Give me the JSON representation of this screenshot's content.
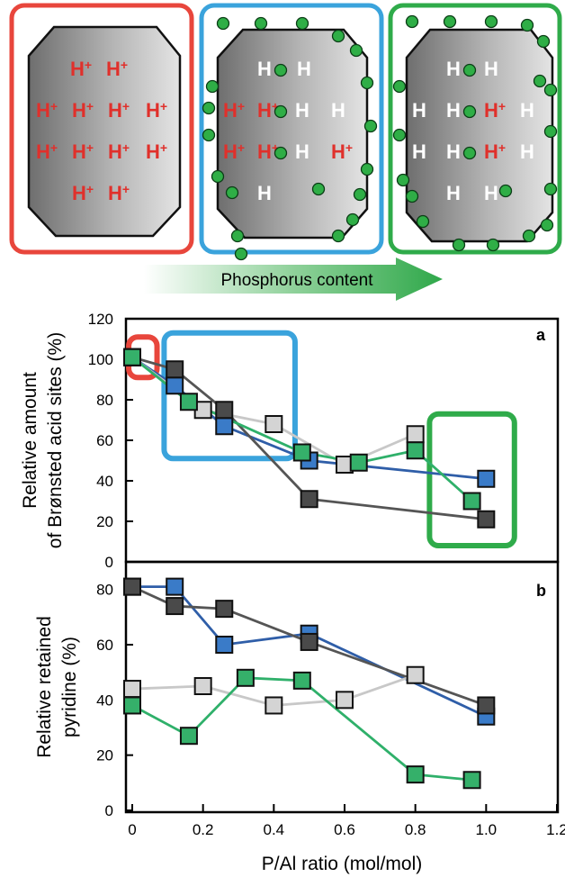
{
  "diagram": {
    "ion_label": "H",
    "charge_label": "+",
    "arrow_label": "Phosphorus content",
    "panels": [
      {
        "name": "low",
        "frame_color": "#e8463c",
        "ions": [
          "H+",
          "H+",
          "H+",
          "H+",
          "H+",
          "H+",
          "H+",
          "H+",
          "H+",
          "H+",
          "H+",
          "H+"
        ]
      },
      {
        "name": "medium",
        "frame_color": "#3aa3dc",
        "ions": [
          "H",
          "H",
          "H+",
          "H+",
          "H",
          "H",
          "H+",
          "H+",
          "H",
          "H+",
          "H"
        ]
      },
      {
        "name": "high",
        "frame_color": "#2fab4a",
        "ions": [
          "H",
          "H",
          "H",
          "H",
          "H+",
          "H",
          "H",
          "H",
          "H+",
          "H",
          "H",
          "H"
        ]
      }
    ],
    "colors": {
      "proton": "#e0302b",
      "neutral": "#ffffff",
      "phosphorus_dot": "#2fae46",
      "arrow_end": "#2fa84a"
    }
  },
  "chart_data": [
    {
      "type": "line",
      "panel_label": "a",
      "ylabel_lines": [
        "Relative amount",
        "of Brønsted acid sites (%)"
      ],
      "ylim": [
        0,
        120
      ],
      "yticks": [
        "0",
        "20",
        "40",
        "60",
        "80",
        "100",
        "120"
      ],
      "xlim": [
        0,
        1.2
      ],
      "series": [
        {
          "color": "#2f5ea8",
          "fill": "#3a7bc8",
          "x": [
            0,
            0.12,
            0.26,
            0.5,
            1.0
          ],
          "y": [
            101,
            87,
            67,
            50,
            41
          ]
        },
        {
          "color": "#555555",
          "fill": "#4a4a4a",
          "x": [
            0,
            0.12,
            0.26,
            0.5,
            1.0
          ],
          "y": [
            101,
            95,
            75,
            31,
            21
          ]
        },
        {
          "color": "#c8c8c8",
          "fill": "#d4d4d4",
          "x": [
            0,
            0.2,
            0.4,
            0.6,
            0.8
          ],
          "y": [
            101,
            75,
            68,
            48,
            63
          ]
        },
        {
          "color": "#2fb06a",
          "fill": "#35b06a",
          "x": [
            0,
            0.16,
            0.48,
            0.64,
            0.8,
            0.96
          ],
          "y": [
            101,
            79,
            54,
            49,
            55,
            30
          ]
        }
      ],
      "highlight_boxes": [
        {
          "color": "#e8463c",
          "x": [
            -0.01,
            0.07
          ],
          "y": [
            91,
            111
          ]
        },
        {
          "color": "#3aa3dc",
          "x": [
            0.09,
            0.46
          ],
          "y": [
            51,
            113
          ]
        },
        {
          "color": "#2fab4a",
          "x": [
            0.84,
            1.08
          ],
          "y": [
            8,
            73
          ]
        }
      ]
    },
    {
      "type": "line",
      "panel_label": "b",
      "ylabel_lines": [
        "Relative retained",
        "pyridine (%)"
      ],
      "ylim": [
        0,
        90
      ],
      "yticks": [
        "0",
        "20",
        "40",
        "60",
        "80"
      ],
      "xlabel": "P/Al ratio (mol/mol)",
      "xlim": [
        0,
        1.2
      ],
      "xticks": [
        "0",
        "0.2",
        "0.4",
        "0.6",
        "0.8",
        "1.0",
        "1.2"
      ],
      "series": [
        {
          "color": "#2f5ea8",
          "fill": "#3a7bc8",
          "x": [
            0,
            0.12,
            0.26,
            0.5,
            1.0
          ],
          "y": [
            81,
            81,
            60,
            64,
            34
          ]
        },
        {
          "color": "#555555",
          "fill": "#4a4a4a",
          "x": [
            0,
            0.12,
            0.26,
            0.5,
            1.0
          ],
          "y": [
            81,
            74,
            73,
            61,
            38
          ]
        },
        {
          "color": "#c8c8c8",
          "fill": "#d4d4d4",
          "x": [
            0,
            0.2,
            0.4,
            0.6,
            0.8
          ],
          "y": [
            44,
            45,
            38,
            40,
            49
          ]
        },
        {
          "color": "#2fb06a",
          "fill": "#35b06a",
          "x": [
            0,
            0.16,
            0.32,
            0.48,
            0.8,
            0.96
          ],
          "y": [
            38,
            27,
            48,
            47,
            13,
            11
          ]
        }
      ]
    }
  ]
}
